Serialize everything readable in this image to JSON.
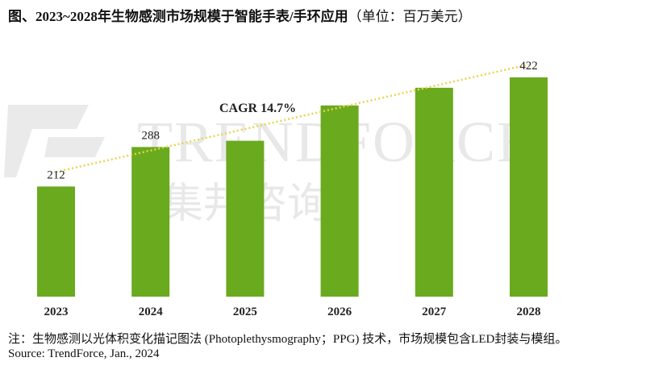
{
  "title": "图、2023~2028年生物感测市场规模于智能手表/手环应用",
  "unit": "（单位：百万美元）",
  "watermark": {
    "text_en": "TRENDFORCE",
    "text_zh": "集邦咨询"
  },
  "note": "注：生物感测以光体积变化描记图法 (Photoplethysmography；PPG) 技术，市场规模包含LED封装与模组。",
  "source": "Source: TrendForce, Jan., 2024",
  "chart_data": {
    "type": "bar",
    "categories": [
      "2023",
      "2024",
      "2025",
      "2026",
      "2027",
      "2028"
    ],
    "values": [
      212,
      288,
      300,
      368,
      402,
      422
    ],
    "data_labels": {
      "2023": "212",
      "2024": "288",
      "2028": "422"
    },
    "annotation": "CAGR 14.7%",
    "trendline": {
      "from": "2023",
      "to": "2028",
      "style": "dotted",
      "color": "#e8d44d"
    },
    "ylim": [
      0,
      450
    ],
    "grid": false,
    "bar_color": "#6aaa1e"
  }
}
